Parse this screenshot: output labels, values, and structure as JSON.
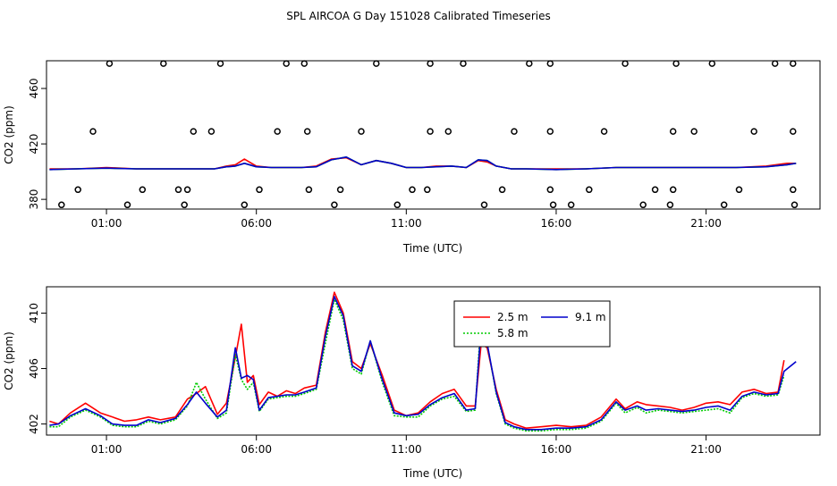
{
  "title": "SPL AIRCOA G  Day 151028  Calibrated Timeseries",
  "chart_data": [
    {
      "type": "line",
      "name": "top-panel",
      "xlabel": "Time (UTC)",
      "ylabel": "CO2 (ppm)",
      "xlim": [
        -1,
        24.8
      ],
      "ylim": [
        373,
        480
      ],
      "xticks": [
        1,
        6,
        11,
        16,
        21
      ],
      "xtick_labels": [
        "01:00",
        "06:00",
        "11:00",
        "16:00",
        "21:00"
      ],
      "yticks": [
        380,
        420,
        460
      ],
      "ytick_labels": [
        "380",
        "420",
        "460"
      ],
      "series": [
        {
          "name": "2.5 m",
          "color": "#ff0000",
          "x": [
            -0.9,
            0,
            1,
            2,
            3,
            4,
            4.6,
            5,
            5.3,
            5.6,
            6,
            6.5,
            7,
            7.5,
            8,
            8.5,
            9,
            9.5,
            10,
            10.5,
            11,
            11.5,
            12,
            12.5,
            13,
            13.4,
            13.7,
            14,
            14.5,
            15,
            16,
            17,
            18,
            19,
            20,
            21,
            22,
            23,
            23.7,
            24
          ],
          "y": [
            402,
            402,
            403,
            402,
            402,
            402,
            402,
            404,
            405,
            409,
            404,
            403,
            403,
            403,
            404,
            409,
            410,
            405,
            408,
            406,
            403,
            403,
            404,
            404,
            403,
            408,
            407,
            404,
            402,
            402,
            402,
            402,
            403,
            403,
            403,
            403,
            403,
            404,
            406,
            406
          ]
        },
        {
          "name": "5.8 m",
          "color": "#00cc00",
          "x": [
            -0.9,
            0,
            1,
            2,
            3,
            4,
            4.6,
            5,
            5.3,
            5.6,
            6,
            6.5,
            7,
            7.5,
            8,
            8.5,
            9,
            9.5,
            10,
            10.5,
            11,
            11.5,
            12,
            12.5,
            13,
            13.4,
            13.7,
            14,
            14.5,
            15,
            16,
            17,
            18,
            19,
            20,
            21,
            22,
            23,
            23.7,
            24
          ],
          "y": [
            401.5,
            402,
            402.5,
            402,
            402,
            402,
            402,
            403.5,
            404,
            406,
            403.5,
            403,
            403,
            403,
            403.5,
            408.5,
            410.5,
            405,
            408,
            406,
            403,
            403,
            403.5,
            404,
            403,
            408.5,
            408,
            404,
            402,
            402,
            401.5,
            402,
            403,
            403,
            403,
            403,
            403,
            403.5,
            405,
            406
          ]
        },
        {
          "name": "9.1 m",
          "color": "#0000cc",
          "x": [
            -0.9,
            0,
            1,
            2,
            3,
            4,
            4.6,
            5,
            5.3,
            5.6,
            6,
            6.5,
            7,
            7.5,
            8,
            8.5,
            9,
            9.5,
            10,
            10.5,
            11,
            11.5,
            12,
            12.5,
            13,
            13.4,
            13.7,
            14,
            14.5,
            15,
            16,
            17,
            18,
            19,
            20,
            21,
            22,
            23,
            23.7,
            24
          ],
          "y": [
            401.5,
            402,
            402.5,
            402,
            402,
            402,
            402,
            403.5,
            404,
            406,
            403.5,
            403,
            403,
            403,
            403.5,
            408.5,
            410.5,
            405,
            408,
            406,
            403,
            403,
            403.5,
            404,
            403,
            408.5,
            408,
            404,
            402,
            402,
            401.5,
            402,
            403,
            403,
            403,
            403,
            403,
            403.5,
            405,
            406
          ]
        }
      ],
      "flag_points": {
        "color": "#000000",
        "x": [
          1.1,
          2.9,
          4.8,
          7,
          7.6,
          10,
          11.8,
          12.9,
          15.1,
          15.8,
          18.3,
          20,
          21.2,
          23.3,
          23.9,
          0.55,
          3.9,
          4.5,
          6.7,
          7.7,
          9.5,
          11.8,
          12.4,
          14.6,
          15.8,
          17.6,
          19.9,
          20.6,
          22.6,
          23.9,
          0.05,
          2.2,
          3.4,
          3.7,
          6.1,
          7.75,
          8.8,
          11.2,
          11.7,
          14.2,
          15.8,
          17.1,
          19.3,
          19.9,
          22.1,
          23.9,
          -0.5,
          1.7,
          3.6,
          5.6,
          8.6,
          10.7,
          13.6,
          15.9,
          16.5,
          18.9,
          19.8,
          21.6,
          23.95
        ],
        "y": [
          478,
          478,
          478,
          478,
          478,
          478,
          478,
          478,
          478,
          478,
          478,
          478,
          478,
          478,
          478,
          429,
          429,
          429,
          429,
          429,
          429,
          429,
          429,
          429,
          429,
          429,
          429,
          429,
          429,
          429,
          387,
          387,
          387,
          387,
          387,
          387,
          387,
          387,
          387,
          387,
          387,
          387,
          387,
          387,
          387,
          387,
          376,
          376,
          376,
          376,
          376,
          376,
          376,
          376,
          376,
          376,
          376,
          376,
          376
        ]
      }
    },
    {
      "type": "line",
      "name": "bottom-panel",
      "xlabel": "Time (UTC)",
      "ylabel": "CO2 (ppm)",
      "xlim": [
        -1,
        24.8
      ],
      "ylim": [
        401.2,
        411.9
      ],
      "xticks": [
        1,
        6,
        11,
        16,
        21
      ],
      "xtick_labels": [
        "01:00",
        "06:00",
        "11:00",
        "16:00",
        "21:00"
      ],
      "yticks": [
        402,
        406,
        410
      ],
      "ytick_labels": [
        "402",
        "406",
        "410"
      ],
      "legend": {
        "position": "top-center",
        "entries": [
          {
            "label": "2.5 m",
            "color": "#ff0000",
            "dash": "solid"
          },
          {
            "label": "9.1 m",
            "color": "#0000cc",
            "dash": "solid"
          },
          {
            "label": "5.8 m",
            "color": "#00cc00",
            "dash": "dotted"
          }
        ]
      },
      "series": [
        {
          "name": "2.5 m",
          "color": "#ff0000",
          "dash": "solid",
          "x": [
            -0.9,
            -0.6,
            -0.2,
            0.3,
            0.8,
            1.2,
            1.6,
            2,
            2.4,
            2.8,
            3.3,
            3.7,
            4,
            4.3,
            4.7,
            5,
            5.3,
            5.5,
            5.7,
            5.9,
            6.1,
            6.4,
            6.7,
            7,
            7.3,
            7.6,
            8,
            8.3,
            8.6,
            8.9,
            9.2,
            9.5,
            9.8,
            10.2,
            10.6,
            11,
            11.4,
            11.8,
            12.2,
            12.6,
            13,
            13.3,
            13.5,
            13.7,
            14,
            14.3,
            14.6,
            15,
            15.5,
            16,
            16.5,
            17,
            17.5,
            18,
            18.3,
            18.7,
            19,
            19.4,
            19.8,
            20.2,
            20.6,
            21,
            21.4,
            21.8,
            22.2,
            22.6,
            23,
            23.4,
            23.6
          ],
          "y": [
            402.2,
            402,
            402.8,
            403.5,
            402.8,
            402.5,
            402.2,
            402.3,
            402.5,
            402.3,
            402.5,
            403.8,
            404.2,
            404.7,
            402.7,
            403.5,
            406.8,
            409.2,
            405,
            405.5,
            403.4,
            404.3,
            404,
            404.4,
            404.2,
            404.6,
            404.8,
            408.6,
            411.5,
            410,
            406.5,
            406,
            407.8,
            405.5,
            403,
            402.6,
            402.8,
            403.6,
            404.2,
            404.5,
            403.3,
            403.3,
            407.8,
            407.5,
            404.5,
            402.3,
            402,
            401.7,
            401.8,
            401.9,
            401.8,
            401.9,
            402.5,
            403.8,
            403.1,
            403.6,
            403.4,
            403.3,
            403.2,
            403,
            403.2,
            403.5,
            403.6,
            403.4,
            404.3,
            404.5,
            404.2,
            404.3,
            406.6
          ]
        },
        {
          "name": "5.8 m",
          "color": "#00cc00",
          "dash": "dotted",
          "x": [
            -0.9,
            -0.6,
            -0.2,
            0.3,
            0.8,
            1.2,
            1.6,
            2,
            2.4,
            2.8,
            3.3,
            3.7,
            4,
            4.3,
            4.7,
            5,
            5.3,
            5.5,
            5.7,
            5.9,
            6.1,
            6.4,
            6.7,
            7,
            7.3,
            7.6,
            8,
            8.3,
            8.6,
            8.9,
            9.2,
            9.5,
            9.8,
            10.2,
            10.6,
            11,
            11.4,
            11.8,
            12.2,
            12.6,
            13,
            13.3,
            13.5,
            13.7,
            14,
            14.3,
            14.6,
            15,
            15.5,
            16,
            16.5,
            17,
            17.5,
            18,
            18.3,
            18.7,
            19,
            19.4,
            19.8,
            20.2,
            20.6,
            21,
            21.4,
            21.8,
            22.2,
            22.6,
            23,
            23.4,
            23.6
          ],
          "y": [
            401.8,
            401.8,
            402.5,
            403,
            402.5,
            401.9,
            401.8,
            401.8,
            402.2,
            402,
            402.3,
            403.3,
            405,
            403.8,
            402.4,
            402.8,
            407,
            405.2,
            404.5,
            405,
            402.9,
            403.8,
            403.9,
            404,
            404,
            404.2,
            404.5,
            407.8,
            411,
            409.5,
            406,
            405.6,
            408,
            405,
            402.6,
            402.5,
            402.5,
            403.3,
            403.8,
            404,
            402.9,
            403,
            409.7,
            407.8,
            404.2,
            402,
            401.7,
            401.5,
            401.5,
            401.6,
            401.6,
            401.7,
            402.2,
            403.5,
            402.8,
            403.2,
            402.8,
            403,
            402.9,
            402.8,
            402.9,
            403,
            403.1,
            402.8,
            403.9,
            404.2,
            404,
            404.1,
            405.5
          ]
        },
        {
          "name": "9.1 m",
          "color": "#0000cc",
          "dash": "solid",
          "x": [
            -0.9,
            -0.6,
            -0.2,
            0.3,
            0.8,
            1.2,
            1.6,
            2,
            2.4,
            2.8,
            3.3,
            3.7,
            4,
            4.3,
            4.7,
            5,
            5.3,
            5.5,
            5.7,
            5.9,
            6.1,
            6.4,
            6.7,
            7,
            7.3,
            7.6,
            8,
            8.3,
            8.6,
            8.9,
            9.2,
            9.5,
            9.8,
            10.2,
            10.6,
            11,
            11.4,
            11.8,
            12.2,
            12.6,
            13,
            13.3,
            13.5,
            13.7,
            14,
            14.3,
            14.6,
            15,
            15.5,
            16,
            16.5,
            17,
            17.5,
            18,
            18.3,
            18.7,
            19,
            19.4,
            19.8,
            20.2,
            20.6,
            21,
            21.4,
            21.8,
            22.2,
            22.6,
            23,
            23.4,
            23.6,
            24
          ],
          "y": [
            401.9,
            402,
            402.6,
            403.1,
            402.6,
            402,
            401.9,
            401.9,
            402.3,
            402.1,
            402.4,
            403.4,
            404.3,
            403.5,
            402.5,
            403,
            407.5,
            405.3,
            405.5,
            405.2,
            403,
            403.9,
            404,
            404.1,
            404.1,
            404.3,
            404.6,
            408.3,
            411.2,
            409.8,
            406.2,
            405.8,
            408,
            405.2,
            402.8,
            402.6,
            402.7,
            403.4,
            403.9,
            404.2,
            403,
            403.1,
            409,
            407.8,
            404.3,
            402.1,
            401.8,
            401.6,
            401.6,
            401.7,
            401.7,
            401.8,
            402.3,
            403.6,
            403,
            403.3,
            403,
            403.1,
            403,
            402.9,
            403,
            403.2,
            403.3,
            403,
            404,
            404.3,
            404.1,
            404.2,
            405.8,
            406.5
          ]
        }
      ]
    }
  ]
}
